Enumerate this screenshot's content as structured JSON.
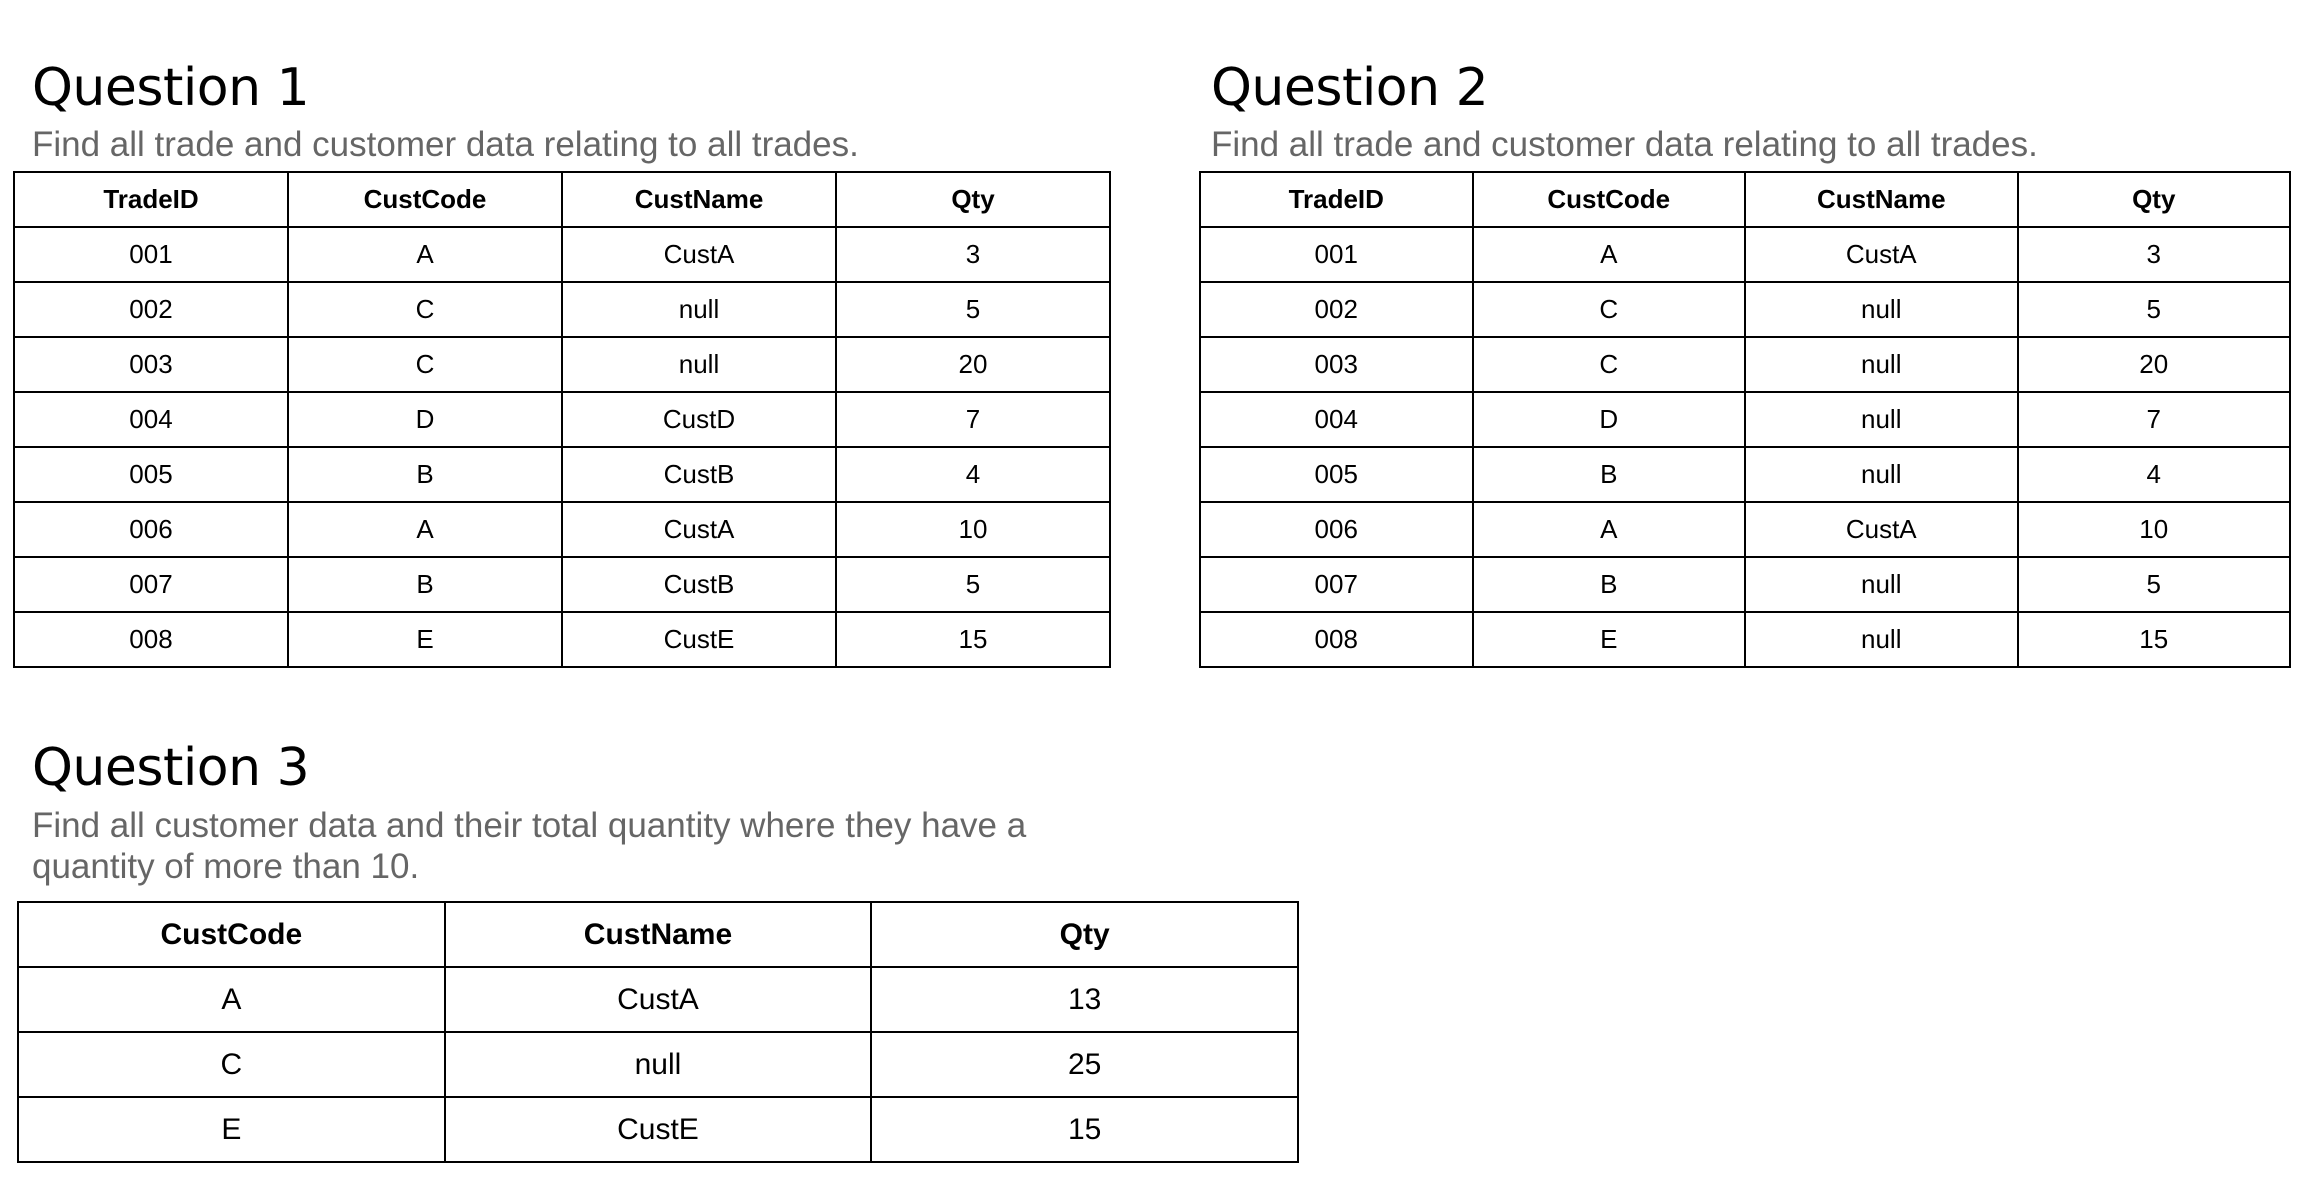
{
  "q1": {
    "title": "Question 1",
    "description": "Find all trade and customer data relating to all trades.",
    "headers": [
      "TradeID",
      "CustCode",
      "CustName",
      "Qty"
    ],
    "rows": [
      [
        "001",
        "A",
        "CustA",
        "3"
      ],
      [
        "002",
        "C",
        "null",
        "5"
      ],
      [
        "003",
        "C",
        "null",
        "20"
      ],
      [
        "004",
        "D",
        "CustD",
        "7"
      ],
      [
        "005",
        "B",
        "CustB",
        "4"
      ],
      [
        "006",
        "A",
        "CustA",
        "10"
      ],
      [
        "007",
        "B",
        "CustB",
        "5"
      ],
      [
        "008",
        "E",
        "CustE",
        "15"
      ]
    ]
  },
  "q2": {
    "title": "Question 2",
    "description": "Find all trade and customer data relating to all trades.",
    "headers": [
      "TradeID",
      "CustCode",
      "CustName",
      "Qty"
    ],
    "rows": [
      [
        "001",
        "A",
        "CustA",
        "3"
      ],
      [
        "002",
        "C",
        "null",
        "5"
      ],
      [
        "003",
        "C",
        "null",
        "20"
      ],
      [
        "004",
        "D",
        "null",
        "7"
      ],
      [
        "005",
        "B",
        "null",
        "4"
      ],
      [
        "006",
        "A",
        "CustA",
        "10"
      ],
      [
        "007",
        "B",
        "null",
        "5"
      ],
      [
        "008",
        "E",
        "null",
        "15"
      ]
    ]
  },
  "q3": {
    "title": "Question 3",
    "description": "Find all customer data and their total quantity where they have a quantity of more than 10.",
    "headers": [
      "CustCode",
      "CustName",
      "Qty"
    ],
    "rows": [
      [
        "A",
        "CustA",
        "13"
      ],
      [
        "C",
        "null",
        "25"
      ],
      [
        "E",
        "CustE",
        "15"
      ]
    ]
  }
}
